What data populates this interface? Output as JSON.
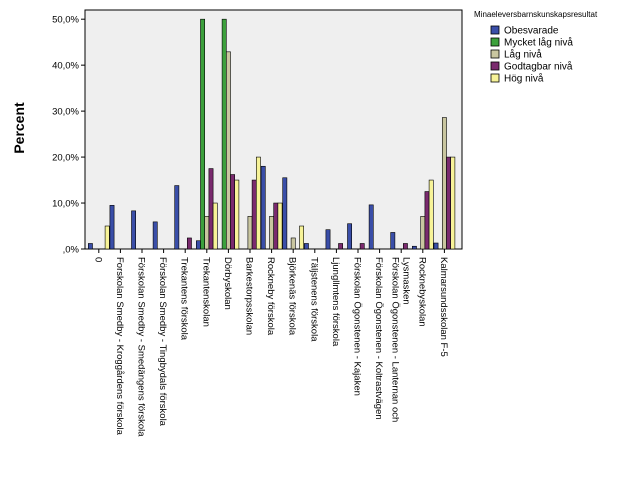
{
  "chart_data": {
    "type": "bar",
    "ylabel": "Percent",
    "ylim": [
      0,
      52
    ],
    "yticks": [
      0,
      10,
      20,
      30,
      40,
      50
    ],
    "ytick_labels": [
      ",0%",
      "10,0%",
      "20,0%",
      "30,0%",
      "40,0%",
      "50,0%"
    ],
    "legend_title": "Minaeleversbarnskunskapsresultat",
    "legend_position": "top-right",
    "grid": false,
    "categories": [
      "0",
      "Forskolan Smedby - Kroggårdens förskola",
      "Förskolan Smedby - Smedängens förskola",
      "Förskolan Smedby - Tingbydals förskola",
      "Trekantens förskola",
      "Trekantenskolan",
      "Dörbyskolan",
      "Barkestorpsskolan",
      "Rockneby förskola",
      "Björkenäs förskola",
      "Täljstenens förskola",
      "Ljungllmtens förskola",
      "Förskolan Ögonstenen - Kajaken",
      "Förskolan Ögonstenen - Koltrastvägen",
      "Förskolan Ögonstenen - Lanternan och Lysmasken",
      "Rocknebyskolan",
      "Kalmarsundsskolan F-5"
    ],
    "series": [
      {
        "name": "Obesvarade",
        "color": "#3a4ea8",
        "values": [
          1.2,
          9.5,
          8.3,
          5.9,
          13.8,
          1.8,
          0,
          0,
          18.0,
          15.5,
          1.2,
          4.2,
          5.5,
          9.6,
          3.6,
          0.6,
          1.3
        ]
      },
      {
        "name": "Mycket låg nivå",
        "color": "#3ca03c",
        "values": [
          0,
          0,
          0,
          0,
          0,
          50.0,
          50.0,
          0,
          0,
          0,
          0,
          0,
          0,
          0,
          0,
          0,
          0
        ]
      },
      {
        "name": "Låg nivå",
        "color": "#c9c6a0",
        "values": [
          0,
          0,
          0,
          0,
          0,
          7.1,
          42.9,
          7.1,
          7.1,
          2.4,
          0,
          0,
          0,
          0,
          0,
          7.1,
          28.6
        ]
      },
      {
        "name": "Godtagbar nivå",
        "color": "#7a2a6e",
        "values": [
          0,
          0,
          0,
          0,
          2.4,
          17.5,
          16.2,
          15.0,
          10.0,
          0,
          0,
          1.2,
          1.2,
          0,
          1.2,
          12.5,
          20.0
        ]
      },
      {
        "name": "Hög nivå",
        "color": "#f7f398",
        "values": [
          5.0,
          0,
          0,
          0,
          0,
          10.0,
          15.0,
          20.0,
          10.0,
          5.0,
          0,
          0,
          0,
          0,
          0,
          15.0,
          20.0
        ]
      }
    ]
  }
}
